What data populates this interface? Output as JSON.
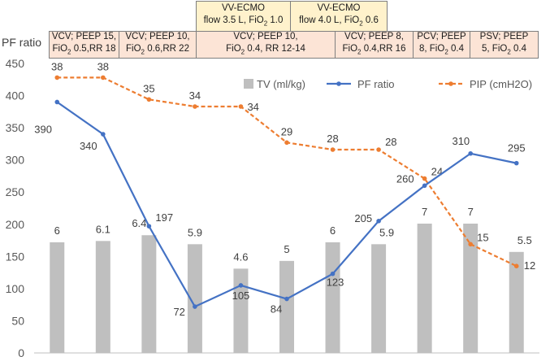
{
  "chart_data": {
    "type": "bar+line",
    "ylabel": "PF ratio",
    "ylim": [
      0,
      450
    ],
    "yticks": [
      0,
      50,
      100,
      150,
      200,
      250,
      300,
      350,
      400,
      450
    ],
    "n_points": 11,
    "grid": false,
    "legend_position": "top-right, inside plot",
    "series": [
      {
        "name": "TV (ml/kg)",
        "kind": "bar",
        "color": "#bfbfbf",
        "values": [
          6,
          6.1,
          6.4,
          5.9,
          4.6,
          5,
          6,
          5.9,
          7,
          7,
          5.5
        ],
        "plotted": [
          172,
          174,
          183,
          169,
          131,
          143,
          172,
          169,
          201,
          201,
          157
        ]
      },
      {
        "name": "PF ratio",
        "kind": "line",
        "color": "#4472c4",
        "values": [
          390,
          340,
          197,
          72,
          105,
          84,
          123,
          205,
          260,
          310,
          295
        ]
      },
      {
        "name": "PIP (cmH2O)",
        "kind": "dashed-line",
        "color": "#ed7d31",
        "values": [
          38,
          38,
          35,
          34,
          34,
          29,
          28,
          28,
          24,
          15,
          12
        ],
        "plotted": [
          428,
          428,
          394,
          383,
          383,
          327,
          316,
          316,
          271,
          169,
          135
        ]
      }
    ],
    "annotations": {
      "vent_settings": [
        {
          "line1": "VCV; PEEP 15,",
          "line2": "FiO2 0.5,RR 18"
        },
        {
          "line1": "VCV; PEEP 10,",
          "line2": "FiO2 0.6,RR 22"
        },
        {
          "line1": "VCV; PEEP 10,",
          "line2": "FiO2 0.4, RR 12-14"
        },
        {
          "line1": "VCV; PEEP 8,",
          "line2": "FiO2 0.4,RR 16"
        },
        {
          "line1": "PCV; PEEP",
          "line2": "8, FiO2 0.4"
        },
        {
          "line1": "PSV; PEEP",
          "line2": "5, FiO2 0.4"
        }
      ],
      "ecmo": [
        {
          "line1": "VV-ECMO",
          "line2": "flow 3.5 L, FiO2 1.0"
        },
        {
          "line1": "VV-ECMO",
          "line2": "flow 4.0 L, FiO2 0.6"
        }
      ]
    }
  }
}
